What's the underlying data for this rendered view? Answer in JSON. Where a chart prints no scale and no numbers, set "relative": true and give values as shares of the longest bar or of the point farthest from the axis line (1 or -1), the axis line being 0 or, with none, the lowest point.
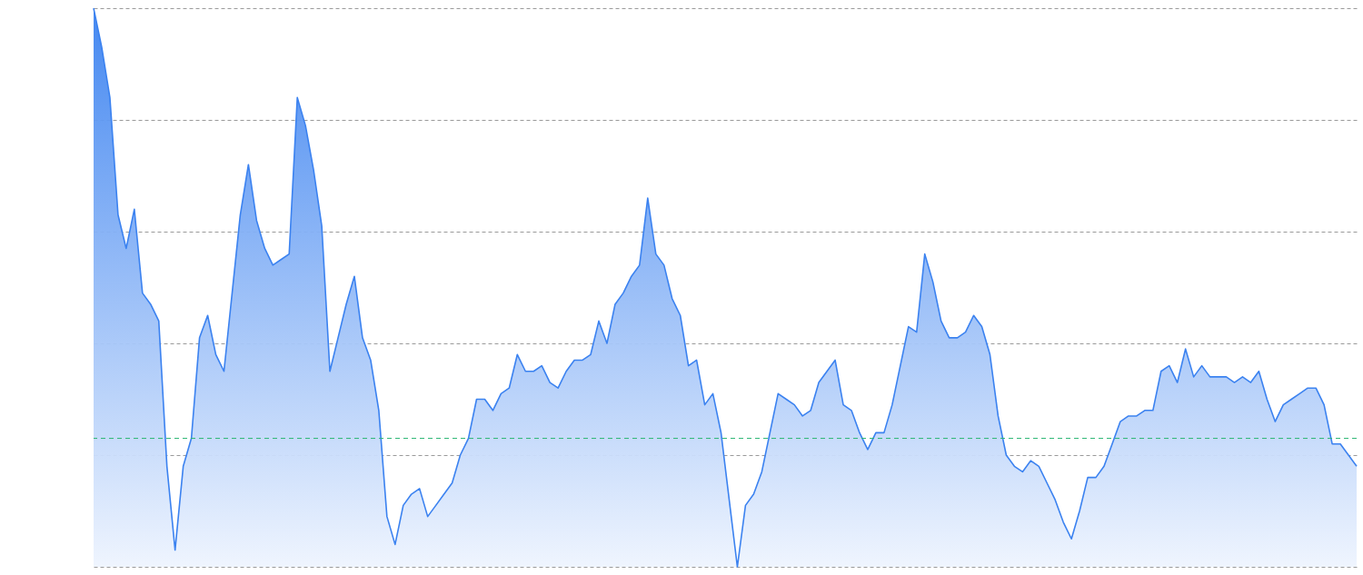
{
  "chart_data": {
    "type": "area",
    "relative": true,
    "grid": "y",
    "categories": [
      null,
      null,
      null,
      null,
      null,
      null,
      null,
      null,
      null,
      null,
      null,
      null,
      null,
      null,
      null,
      null,
      null,
      null,
      null,
      null,
      null,
      null,
      null,
      null,
      null,
      null,
      null,
      null,
      null,
      null,
      null,
      null,
      null,
      null,
      null,
      null,
      null,
      null,
      null,
      null,
      null,
      null,
      null,
      null,
      null,
      null,
      null,
      null,
      null,
      null,
      null,
      null,
      null,
      null,
      null,
      null,
      null,
      null,
      null,
      null,
      null,
      null,
      null,
      null,
      null,
      null,
      null,
      null,
      null,
      null,
      null,
      null,
      null,
      null,
      null,
      null,
      null,
      null,
      null,
      null,
      null,
      null,
      null,
      null,
      null,
      null,
      null,
      null,
      null,
      null,
      null,
      null,
      null,
      null,
      null,
      null,
      null,
      null,
      null,
      null,
      null,
      null,
      null,
      null,
      null,
      null,
      null,
      null,
      null,
      null,
      null,
      null,
      null,
      null,
      null,
      null,
      null,
      null,
      null,
      null,
      null,
      null,
      null,
      null,
      null,
      null,
      null,
      null,
      null,
      null,
      null,
      null,
      null,
      null,
      null,
      null,
      null,
      null,
      null,
      null,
      null,
      null,
      null,
      null,
      null,
      null,
      null,
      null,
      null,
      null,
      null,
      null,
      null,
      null,
      null,
      null
    ],
    "series": [
      {
        "color": "#3b82f0",
        "values": [
          1.0,
          0.93,
          0.84,
          0.63,
          0.57,
          0.64,
          0.49,
          0.47,
          0.44,
          0.18,
          0.03,
          0.18,
          0.23,
          0.41,
          0.45,
          0.38,
          0.35,
          0.49,
          0.63,
          0.72,
          0.62,
          0.57,
          0.54,
          0.55,
          0.56,
          0.84,
          0.79,
          0.71,
          0.61,
          0.35,
          0.41,
          0.47,
          0.52,
          0.41,
          0.37,
          0.28,
          0.09,
          0.04,
          0.11,
          0.13,
          0.14,
          0.09,
          0.11,
          0.13,
          0.15,
          0.2,
          0.23,
          0.3,
          0.3,
          0.28,
          0.31,
          0.32,
          0.38,
          0.35,
          0.35,
          0.36,
          0.33,
          0.32,
          0.35,
          0.37,
          0.37,
          0.38,
          0.44,
          0.4,
          0.47,
          0.49,
          0.52,
          0.54,
          0.66,
          0.56,
          0.54,
          0.48,
          0.45,
          0.36,
          0.37,
          0.29,
          0.31,
          0.24,
          0.12,
          0.0,
          0.11,
          0.13,
          0.17,
          0.24,
          0.31,
          0.3,
          0.29,
          0.27,
          0.28,
          0.33,
          0.35,
          0.37,
          0.29,
          0.28,
          0.24,
          0.21,
          0.24,
          0.24,
          0.29,
          0.36,
          0.43,
          0.42,
          0.56,
          0.51,
          0.44,
          0.41,
          0.41,
          0.42,
          0.45,
          0.43,
          0.38,
          0.27,
          0.2,
          0.18,
          0.17,
          0.19,
          0.18,
          0.15,
          0.12,
          0.08,
          0.05,
          0.1,
          0.16,
          0.16,
          0.18,
          0.22,
          0.26,
          0.27,
          0.27,
          0.28,
          0.28,
          0.35,
          0.36,
          0.33,
          0.39,
          0.34,
          0.36,
          0.34,
          0.34,
          0.34,
          0.33,
          0.34,
          0.33,
          0.35,
          0.3,
          0.26,
          0.29,
          0.3,
          0.31,
          0.32,
          0.32,
          0.29,
          0.22,
          0.22,
          0.2,
          0.18
        ]
      }
    ],
    "ref_lines": [
      {
        "axis": "y",
        "value": 0.23,
        "color": "#2bb673",
        "line_style": "dashed"
      }
    ]
  }
}
